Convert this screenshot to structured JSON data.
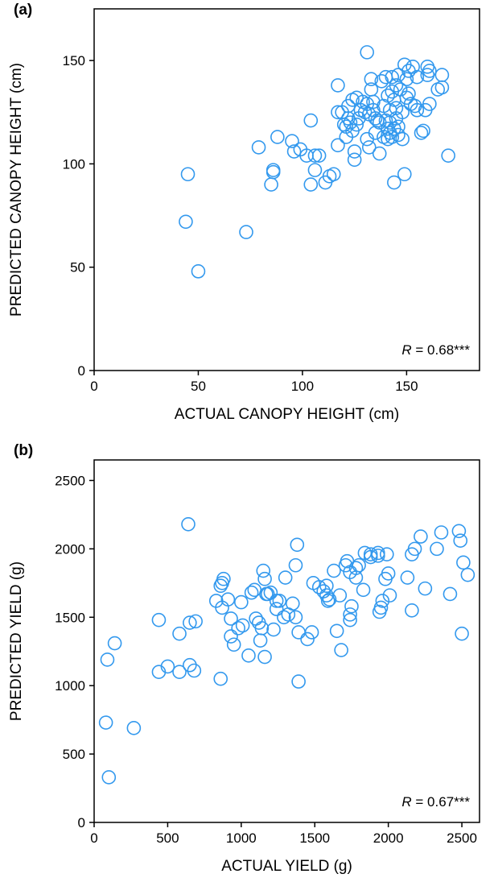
{
  "chart_data": [
    {
      "type": "scatter",
      "panel": "(a)",
      "xlabel": "ACTUAL CANOPY HEIGHT (cm)",
      "ylabel": "PREDICTED CANOPY HEIGHT (cm)",
      "xlim": [
        0,
        185
      ],
      "ylim": [
        0,
        175
      ],
      "xticks": [
        0,
        50,
        100,
        150
      ],
      "yticks": [
        0,
        50,
        100,
        150
      ],
      "marker_color": "#3399ee",
      "annotation": {
        "prefix": "R",
        "text": " = 0.68***"
      },
      "points": [
        [
          44,
          72
        ],
        [
          45,
          95
        ],
        [
          50,
          48
        ],
        [
          73,
          67
        ],
        [
          79,
          108
        ],
        [
          85,
          90
        ],
        [
          86,
          97
        ],
        [
          86,
          96
        ],
        [
          88,
          113
        ],
        [
          95,
          111
        ],
        [
          96,
          106
        ],
        [
          99,
          107
        ],
        [
          102,
          104
        ],
        [
          104,
          90
        ],
        [
          104,
          121
        ],
        [
          106,
          97
        ],
        [
          106,
          104
        ],
        [
          108,
          104
        ],
        [
          111,
          91
        ],
        [
          113,
          94
        ],
        [
          115,
          95
        ],
        [
          117,
          109
        ],
        [
          117,
          138
        ],
        [
          117,
          125
        ],
        [
          119,
          125
        ],
        [
          120,
          119
        ],
        [
          121,
          113
        ],
        [
          121,
          118
        ],
        [
          122,
          128
        ],
        [
          122,
          122
        ],
        [
          123,
          120
        ],
        [
          124,
          131
        ],
        [
          124,
          116
        ],
        [
          125,
          102
        ],
        [
          125,
          106
        ],
        [
          126,
          132
        ],
        [
          126,
          119
        ],
        [
          127,
          122
        ],
        [
          128,
          126
        ],
        [
          129,
          130
        ],
        [
          130,
          125
        ],
        [
          131,
          112
        ],
        [
          131,
          129
        ],
        [
          131,
          154
        ],
        [
          132,
          108
        ],
        [
          132,
          124
        ],
        [
          133,
          141
        ],
        [
          133,
          136
        ],
        [
          134,
          130
        ],
        [
          134,
          126
        ],
        [
          135,
          122
        ],
        [
          135,
          115
        ],
        [
          136,
          121
        ],
        [
          137,
          105
        ],
        [
          137,
          120
        ],
        [
          138,
          140
        ],
        [
          139,
          128
        ],
        [
          139,
          113
        ],
        [
          140,
          142
        ],
        [
          140,
          121
        ],
        [
          141,
          133
        ],
        [
          141,
          117
        ],
        [
          141,
          112
        ],
        [
          142,
          120
        ],
        [
          142,
          126
        ],
        [
          142,
          115
        ],
        [
          143,
          142
        ],
        [
          143,
          135
        ],
        [
          143,
          113
        ],
        [
          144,
          131
        ],
        [
          144,
          117
        ],
        [
          144,
          91
        ],
        [
          145,
          138
        ],
        [
          145,
          127
        ],
        [
          145,
          122
        ],
        [
          146,
          143
        ],
        [
          146,
          118
        ],
        [
          146,
          114
        ],
        [
          147,
          136
        ],
        [
          148,
          125
        ],
        [
          148,
          112
        ],
        [
          149,
          148
        ],
        [
          149,
          95
        ],
        [
          150,
          141
        ],
        [
          150,
          132
        ],
        [
          151,
          134
        ],
        [
          151,
          145
        ],
        [
          152,
          129
        ],
        [
          153,
          147
        ],
        [
          154,
          128
        ],
        [
          155,
          126
        ],
        [
          155,
          142
        ],
        [
          157,
          115
        ],
        [
          158,
          116
        ],
        [
          159,
          126
        ],
        [
          160,
          147
        ],
        [
          160,
          143
        ],
        [
          161,
          129
        ],
        [
          161,
          145
        ],
        [
          165,
          136
        ],
        [
          167,
          137
        ],
        [
          167,
          143
        ],
        [
          170,
          104
        ]
      ]
    },
    {
      "type": "scatter",
      "panel": "(b)",
      "xlabel": "ACTUAL YIELD (g)",
      "ylabel": "PREDICTED YIELD (g)",
      "xlim": [
        0,
        2620
      ],
      "ylim": [
        0,
        2650
      ],
      "xticks": [
        0,
        500,
        1000,
        1500,
        2000,
        2500
      ],
      "yticks": [
        0,
        500,
        1000,
        1500,
        2000,
        2500
      ],
      "marker_color": "#3399ee",
      "annotation": {
        "prefix": "R",
        "text": " = 0.67***"
      },
      "points": [
        [
          80,
          730
        ],
        [
          90,
          1190
        ],
        [
          100,
          330
        ],
        [
          140,
          1310
        ],
        [
          270,
          690
        ],
        [
          440,
          1480
        ],
        [
          440,
          1100
        ],
        [
          500,
          1140
        ],
        [
          580,
          1100
        ],
        [
          580,
          1380
        ],
        [
          640,
          2180
        ],
        [
          650,
          1150
        ],
        [
          650,
          1460
        ],
        [
          680,
          1110
        ],
        [
          690,
          1470
        ],
        [
          830,
          1620
        ],
        [
          860,
          1730
        ],
        [
          860,
          1050
        ],
        [
          870,
          1750
        ],
        [
          870,
          1570
        ],
        [
          880,
          1780
        ],
        [
          910,
          1630
        ],
        [
          930,
          1360
        ],
        [
          930,
          1490
        ],
        [
          950,
          1300
        ],
        [
          980,
          1420
        ],
        [
          1000,
          1610
        ],
        [
          1010,
          1440
        ],
        [
          1050,
          1220
        ],
        [
          1070,
          1680
        ],
        [
          1090,
          1700
        ],
        [
          1100,
          1490
        ],
        [
          1120,
          1460
        ],
        [
          1130,
          1330
        ],
        [
          1140,
          1420
        ],
        [
          1150,
          1840
        ],
        [
          1160,
          1780
        ],
        [
          1160,
          1210
        ],
        [
          1170,
          1670
        ],
        [
          1180,
          1670
        ],
        [
          1200,
          1680
        ],
        [
          1220,
          1410
        ],
        [
          1240,
          1560
        ],
        [
          1240,
          1620
        ],
        [
          1260,
          1620
        ],
        [
          1290,
          1500
        ],
        [
          1300,
          1790
        ],
        [
          1320,
          1520
        ],
        [
          1350,
          1600
        ],
        [
          1370,
          1500
        ],
        [
          1370,
          1880
        ],
        [
          1380,
          2030
        ],
        [
          1390,
          1030
        ],
        [
          1390,
          1390
        ],
        [
          1450,
          1340
        ],
        [
          1480,
          1390
        ],
        [
          1490,
          1750
        ],
        [
          1530,
          1720
        ],
        [
          1560,
          1690
        ],
        [
          1580,
          1660
        ],
        [
          1580,
          1730
        ],
        [
          1590,
          1620
        ],
        [
          1600,
          1630
        ],
        [
          1630,
          1840
        ],
        [
          1650,
          1400
        ],
        [
          1670,
          1660
        ],
        [
          1680,
          1260
        ],
        [
          1710,
          1880
        ],
        [
          1720,
          1910
        ],
        [
          1740,
          1480
        ],
        [
          1740,
          1520
        ],
        [
          1740,
          1830
        ],
        [
          1750,
          1580
        ],
        [
          1780,
          1860
        ],
        [
          1780,
          1790
        ],
        [
          1800,
          1880
        ],
        [
          1830,
          1700
        ],
        [
          1840,
          1970
        ],
        [
          1880,
          1960
        ],
        [
          1880,
          1940
        ],
        [
          1930,
          1950
        ],
        [
          1930,
          1970
        ],
        [
          1940,
          1540
        ],
        [
          1950,
          1570
        ],
        [
          1960,
          1620
        ],
        [
          1980,
          1780
        ],
        [
          1990,
          1960
        ],
        [
          2000,
          1820
        ],
        [
          2010,
          1660
        ],
        [
          2130,
          1790
        ],
        [
          2160,
          1550
        ],
        [
          2160,
          1960
        ],
        [
          2180,
          2000
        ],
        [
          2220,
          2090
        ],
        [
          2250,
          1710
        ],
        [
          2330,
          2000
        ],
        [
          2360,
          2120
        ],
        [
          2420,
          1670
        ],
        [
          2480,
          2130
        ],
        [
          2490,
          2060
        ],
        [
          2500,
          1380
        ],
        [
          2510,
          1900
        ],
        [
          2540,
          1810
        ]
      ]
    }
  ]
}
